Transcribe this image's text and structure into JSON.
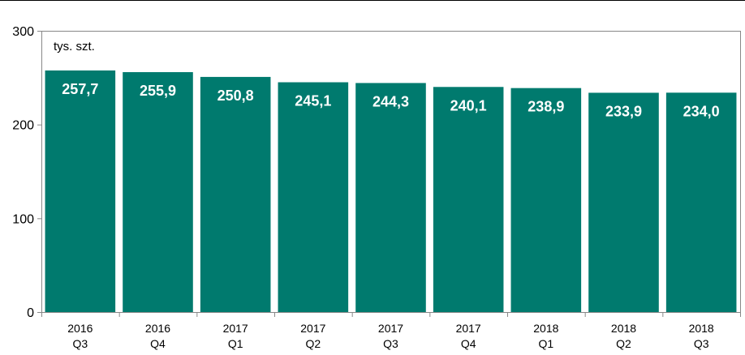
{
  "chart_data": {
    "type": "bar",
    "unit_label": "tys. szt.",
    "categories": [
      [
        "2016",
        "Q3"
      ],
      [
        "2016",
        "Q4"
      ],
      [
        "2017",
        "Q1"
      ],
      [
        "2017",
        "Q2"
      ],
      [
        "2017",
        "Q3"
      ],
      [
        "2017",
        "Q4"
      ],
      [
        "2018",
        "Q1"
      ],
      [
        "2018",
        "Q2"
      ],
      [
        "2018",
        "Q3"
      ]
    ],
    "values": [
      257.7,
      255.9,
      250.8,
      245.1,
      244.3,
      240.1,
      238.9,
      233.9,
      234.0
    ],
    "value_labels": [
      "257,7",
      "255,9",
      "250,8",
      "245,1",
      "244,3",
      "240,1",
      "238,9",
      "233,9",
      "234,0"
    ],
    "yticks": [
      0,
      100,
      200,
      300
    ],
    "ylim": [
      0,
      300
    ],
    "grid": false,
    "bar_color": "#007A6E"
  }
}
